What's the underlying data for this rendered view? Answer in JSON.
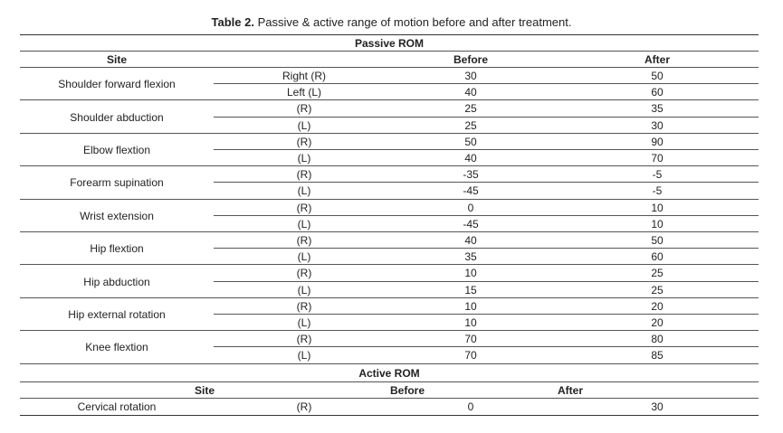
{
  "caption": {
    "label": "Table 2.",
    "text": "Passive & active range of motion before and after treatment."
  },
  "passive": {
    "section_label": "Passive ROM",
    "headers": {
      "site": "Site",
      "before": "Before",
      "after": "After"
    },
    "rows": [
      {
        "site": "Shoulder forward flexion",
        "r": {
          "side": "Right (R)",
          "before": "30",
          "after": "50"
        },
        "l": {
          "side": "Left (L)",
          "before": "40",
          "after": "60"
        }
      },
      {
        "site": "Shoulder abduction",
        "r": {
          "side": "(R)",
          "before": "25",
          "after": "35"
        },
        "l": {
          "side": "(L)",
          "before": "25",
          "after": "30"
        }
      },
      {
        "site": "Elbow flextion",
        "r": {
          "side": "(R)",
          "before": "50",
          "after": "90"
        },
        "l": {
          "side": "(L)",
          "before": "40",
          "after": "70"
        }
      },
      {
        "site": "Forearm supination",
        "r": {
          "side": "(R)",
          "before": "-35",
          "after": "-5"
        },
        "l": {
          "side": "(L)",
          "before": "-45",
          "after": "-5"
        }
      },
      {
        "site": "Wrist extension",
        "r": {
          "side": "(R)",
          "before": "0",
          "after": "10"
        },
        "l": {
          "side": "(L)",
          "before": "-45",
          "after": "10"
        }
      },
      {
        "site": "Hip flextion",
        "r": {
          "side": "(R)",
          "before": "40",
          "after": "50"
        },
        "l": {
          "side": "(L)",
          "before": "35",
          "after": "60"
        }
      },
      {
        "site": "Hip abduction",
        "r": {
          "side": "(R)",
          "before": "10",
          "after": "25"
        },
        "l": {
          "side": "(L)",
          "before": "15",
          "after": "25"
        }
      },
      {
        "site": "Hip external rotation",
        "r": {
          "side": "(R)",
          "before": "10",
          "after": "20"
        },
        "l": {
          "side": "(L)",
          "before": "10",
          "after": "20"
        }
      },
      {
        "site": "Knee flextion",
        "r": {
          "side": "(R)",
          "before": "70",
          "after": "80"
        },
        "l": {
          "side": "(L)",
          "before": "70",
          "after": "85"
        }
      }
    ]
  },
  "active": {
    "section_label": "Active ROM",
    "headers": {
      "site": "Site",
      "before": "Before",
      "after": "After"
    },
    "rows": [
      {
        "site": "Cervical rotation",
        "side": "(R)",
        "before": "0",
        "after": "30"
      }
    ]
  }
}
